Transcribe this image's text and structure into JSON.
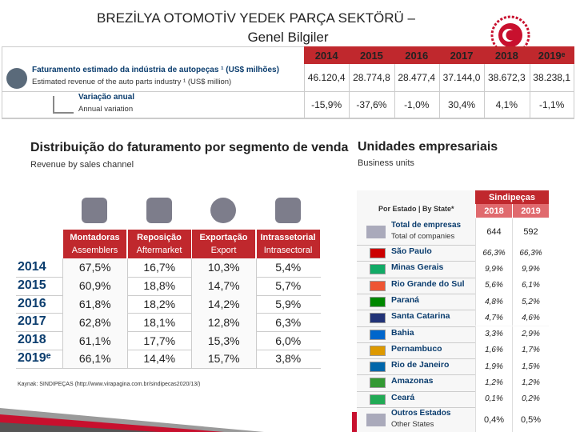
{
  "header": {
    "title_line1": "BREZİLYA OTOMOTİV YEDEK PARÇA SEKTÖRÜ –",
    "title_line2": "Genel Bilgiler"
  },
  "summary_table": {
    "years": [
      "2014",
      "2015",
      "2016",
      "2017",
      "2018",
      "2019ᵉ"
    ],
    "rows": [
      {
        "label_pt": "Faturamento estimado da indústria de autopeças ¹ (US$ milhões)",
        "label_en": "Estimated revenue of the auto parts industry ¹ (US$ million)",
        "values": [
          "46.120,4",
          "28.774,8",
          "28.477,4",
          "37.144,0",
          "38.672,3",
          "38.238,1"
        ]
      },
      {
        "label_pt": "Variação anual",
        "label_en": "Annual variation",
        "values": [
          "-15,9%",
          "-37,6%",
          "-1,0%",
          "30,4%",
          "4,1%",
          "-1,1%"
        ]
      }
    ]
  },
  "channel_table": {
    "title": "Distribuição do faturamento por segmento de venda",
    "subtitle": "Revenue by sales channel",
    "columns": [
      {
        "pt": "Montadoras",
        "en": "Assemblers"
      },
      {
        "pt": "Reposição",
        "en": "Aftermarket"
      },
      {
        "pt": "Exportação",
        "en": "Export"
      },
      {
        "pt": "Intrassetorial",
        "en": "Intrasectoral"
      }
    ],
    "rows": [
      {
        "year": "2014",
        "values": [
          "67,5%",
          "16,7%",
          "10,3%",
          "5,4%"
        ]
      },
      {
        "year": "2015",
        "values": [
          "60,9%",
          "18,8%",
          "14,7%",
          "5,7%"
        ]
      },
      {
        "year": "2016",
        "values": [
          "61,8%",
          "18,2%",
          "14,2%",
          "5,9%"
        ]
      },
      {
        "year": "2017",
        "values": [
          "62,8%",
          "18,1%",
          "12,8%",
          "6,3%"
        ]
      },
      {
        "year": "2018",
        "values": [
          "61,1%",
          "17,7%",
          "15,3%",
          "6,0%"
        ]
      },
      {
        "year": "2019ᵉ",
        "values": [
          "66,1%",
          "14,4%",
          "15,7%",
          "3,8%"
        ]
      }
    ],
    "source": "Kaynak: SINDIPEÇAS (http://www.virapagina.com.br/sindipecas2020/13/)"
  },
  "units_table": {
    "title": "Unidades empresariais",
    "subtitle": "Business units",
    "by_state": "Por Estado | By State*",
    "group": "Sindipeças",
    "years": [
      "2018",
      "2019"
    ],
    "total": {
      "label_pt": "Total de empresas",
      "label_en": "Total of companies",
      "values": [
        "644",
        "592"
      ]
    },
    "rows": [
      {
        "state": "São Paulo",
        "values": [
          "66,3%",
          "66,3%"
        ]
      },
      {
        "state": "Minas Gerais",
        "values": [
          "9,9%",
          "9,9%"
        ]
      },
      {
        "state": "Rio Grande do Sul",
        "values": [
          "5,6%",
          "6,1%"
        ]
      },
      {
        "state": "Paraná",
        "values": [
          "4,8%",
          "5,2%"
        ]
      },
      {
        "state": "Santa Catarina",
        "values": [
          "4,7%",
          "4,6%"
        ]
      },
      {
        "state": "Bahia",
        "values": [
          "3,3%",
          "2,9%"
        ]
      },
      {
        "state": "Pernambuco",
        "values": [
          "1,6%",
          "1,7%"
        ]
      },
      {
        "state": "Rio de Janeiro",
        "values": [
          "1,9%",
          "1,5%"
        ]
      },
      {
        "state": "Amazonas",
        "values": [
          "1,2%",
          "1,2%"
        ]
      },
      {
        "state": "Ceará",
        "values": [
          "0,1%",
          "0,2%"
        ]
      }
    ],
    "other": {
      "label_pt": "Outros Estados",
      "label_en": "Other States",
      "values": [
        "0,4%",
        "0,5%"
      ]
    }
  }
}
